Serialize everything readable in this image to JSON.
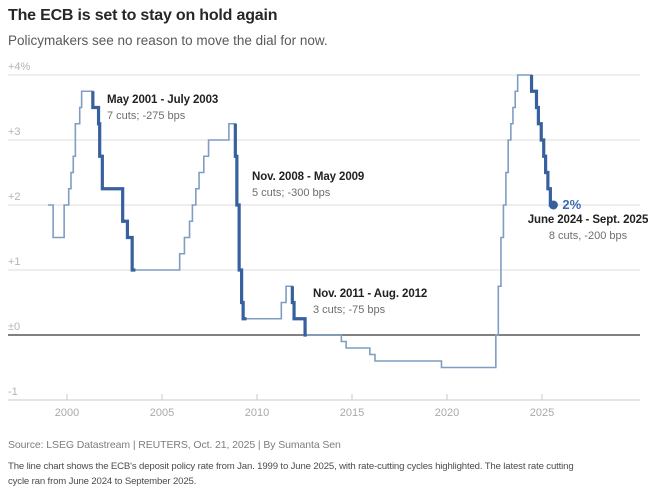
{
  "chart_data": {
    "type": "line",
    "title": "The ECB is set to stay on hold again",
    "subtitle": "Policymakers see no reason to move the dial for now.",
    "source": "Source: LSEG Datastream | REUTERS, Oct. 21, 2025 | By Sumanta Sen",
    "note_lines": {
      "0": "The line chart shows the ECB's deposit policy rate from Jan. 1999 to June 2025, with rate-cutting cycles highlighted. The latest rate cutting",
      "1": "cycle ran from June 2024 to September 2025."
    },
    "unit": "%",
    "x_ticks": [
      2000,
      2005,
      2010,
      2015,
      2020,
      2025
    ],
    "y_ticks": [
      {
        "label": "+4%",
        "value": 4
      },
      {
        "label": "+3",
        "value": 3
      },
      {
        "label": "+2",
        "value": 2
      },
      {
        "label": "+1",
        "value": 1
      },
      {
        "label": "±0",
        "value": 0
      },
      {
        "label": "-1",
        "value": -1
      }
    ],
    "x_range": [
      1999.0,
      2025.6
    ],
    "y_range": [
      -1,
      4
    ],
    "grid": true,
    "rate_events": [
      [
        1999.0,
        2.0
      ],
      [
        1999.27,
        1.5
      ],
      [
        1999.85,
        2.0
      ],
      [
        2000.09,
        2.25
      ],
      [
        2000.21,
        2.5
      ],
      [
        2000.33,
        2.75
      ],
      [
        2000.44,
        3.25
      ],
      [
        2000.67,
        3.5
      ],
      [
        2000.77,
        3.75
      ],
      [
        2001.36,
        3.5
      ],
      [
        2001.66,
        3.25
      ],
      [
        2001.72,
        2.75
      ],
      [
        2001.86,
        2.25
      ],
      [
        2002.93,
        1.75
      ],
      [
        2003.18,
        1.5
      ],
      [
        2003.43,
        1.0
      ],
      [
        2005.93,
        1.25
      ],
      [
        2006.18,
        1.5
      ],
      [
        2006.45,
        1.75
      ],
      [
        2006.6,
        2.0
      ],
      [
        2006.78,
        2.25
      ],
      [
        2006.95,
        2.5
      ],
      [
        2007.2,
        2.75
      ],
      [
        2007.45,
        3.0
      ],
      [
        2008.52,
        3.25
      ],
      [
        2008.86,
        2.75
      ],
      [
        2008.94,
        2.0
      ],
      [
        2009.06,
        1.0
      ],
      [
        2009.19,
        0.5
      ],
      [
        2009.27,
        0.25
      ],
      [
        2011.28,
        0.5
      ],
      [
        2011.53,
        0.75
      ],
      [
        2011.86,
        0.5
      ],
      [
        2011.95,
        0.25
      ],
      [
        2012.53,
        0.0
      ],
      [
        2014.44,
        -0.1
      ],
      [
        2014.69,
        -0.2
      ],
      [
        2015.94,
        -0.3
      ],
      [
        2016.21,
        -0.4
      ],
      [
        2019.71,
        -0.5
      ],
      [
        2022.57,
        0.0
      ],
      [
        2022.7,
        0.75
      ],
      [
        2022.84,
        1.5
      ],
      [
        2022.97,
        2.0
      ],
      [
        2023.1,
        2.5
      ],
      [
        2023.22,
        3.0
      ],
      [
        2023.36,
        3.25
      ],
      [
        2023.47,
        3.5
      ],
      [
        2023.59,
        3.75
      ],
      [
        2023.72,
        4.0
      ],
      [
        2024.45,
        3.75
      ],
      [
        2024.71,
        3.5
      ],
      [
        2024.81,
        3.25
      ],
      [
        2024.96,
        3.0
      ],
      [
        2025.09,
        2.75
      ],
      [
        2025.19,
        2.5
      ],
      [
        2025.31,
        2.25
      ],
      [
        2025.44,
        2.0
      ]
    ],
    "line_end_year": 2025.6,
    "cutting_cycles": [
      {
        "start": 2001.36,
        "end": 2003.6,
        "label": "May 2001 - July 2003",
        "sublabel": "7 cuts; -275 bps"
      },
      {
        "start": 2008.86,
        "end": 2009.45,
        "label": "Nov. 2008 - May 2009",
        "sublabel": "5 cuts; -300 bps"
      },
      {
        "start": 2011.86,
        "end": 2012.62,
        "label": "Nov. 2011 - Aug. 2012",
        "sublabel": "3 cuts; -75 bps"
      },
      {
        "start": 2024.45,
        "end": 2025.6,
        "label": "June 2024 - Sept. 2025",
        "sublabel": "8 cuts, -200 bps"
      }
    ],
    "end_label": "2%",
    "end_value": 2.0,
    "colors": {
      "line": "#7f9dc3",
      "highlight": "#36619e",
      "end_label": "#3a6bb0",
      "grid": "#dedede",
      "zero_line": "#6f6f6f",
      "axis": "#c9c9c9",
      "tick_label": "#a9a9a9",
      "y_label": "#b4b4b4"
    }
  }
}
